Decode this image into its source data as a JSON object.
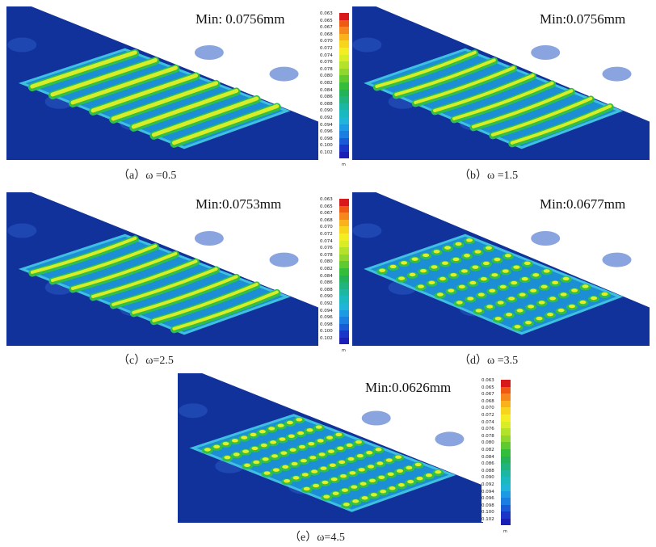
{
  "panels": [
    {
      "id": "a",
      "min_label": "Min: 0.0756mm",
      "caption": "（a）ω =0.5",
      "pattern": "stripes"
    },
    {
      "id": "b",
      "min_label": "Min:0.0756mm",
      "caption": "（b）ω =1.5",
      "pattern": "wavy"
    },
    {
      "id": "c",
      "min_label": "Min:0.0753mm",
      "caption": "（c）ω=2.5",
      "pattern": "wavy"
    },
    {
      "id": "d",
      "min_label": "Min:0.0677mm",
      "caption": "（d）ω =3.5",
      "pattern": "dots"
    },
    {
      "id": "e",
      "min_label": "Min:0.0626mm",
      "caption": "（e）ω=4.5",
      "pattern": "dots-dense"
    }
  ],
  "legend": {
    "ticks": [
      "0.063",
      "0.065",
      "0.067",
      "0.068",
      "0.070",
      "0.072",
      "0.074",
      "0.076",
      "0.078",
      "0.080",
      "0.082",
      "0.084",
      "0.086",
      "0.088",
      "0.090",
      "0.092",
      "0.094",
      "0.096",
      "0.098",
      "0.100",
      "0.102"
    ],
    "unit": "m",
    "colors": [
      "#d9181a",
      "#ef5a12",
      "#f6871c",
      "#f9b11e",
      "#f7d51c",
      "#f3ee23",
      "#d9ec25",
      "#b4e22b",
      "#8fd72e",
      "#5fca2f",
      "#33bd3a",
      "#22b25a",
      "#1fb47e",
      "#1cb7a0",
      "#1ab9c0",
      "#1fb4d8",
      "#1c9be3",
      "#1a7fe0",
      "#1a5ad6",
      "#1a36c8",
      "#1a1fb5"
    ]
  }
}
